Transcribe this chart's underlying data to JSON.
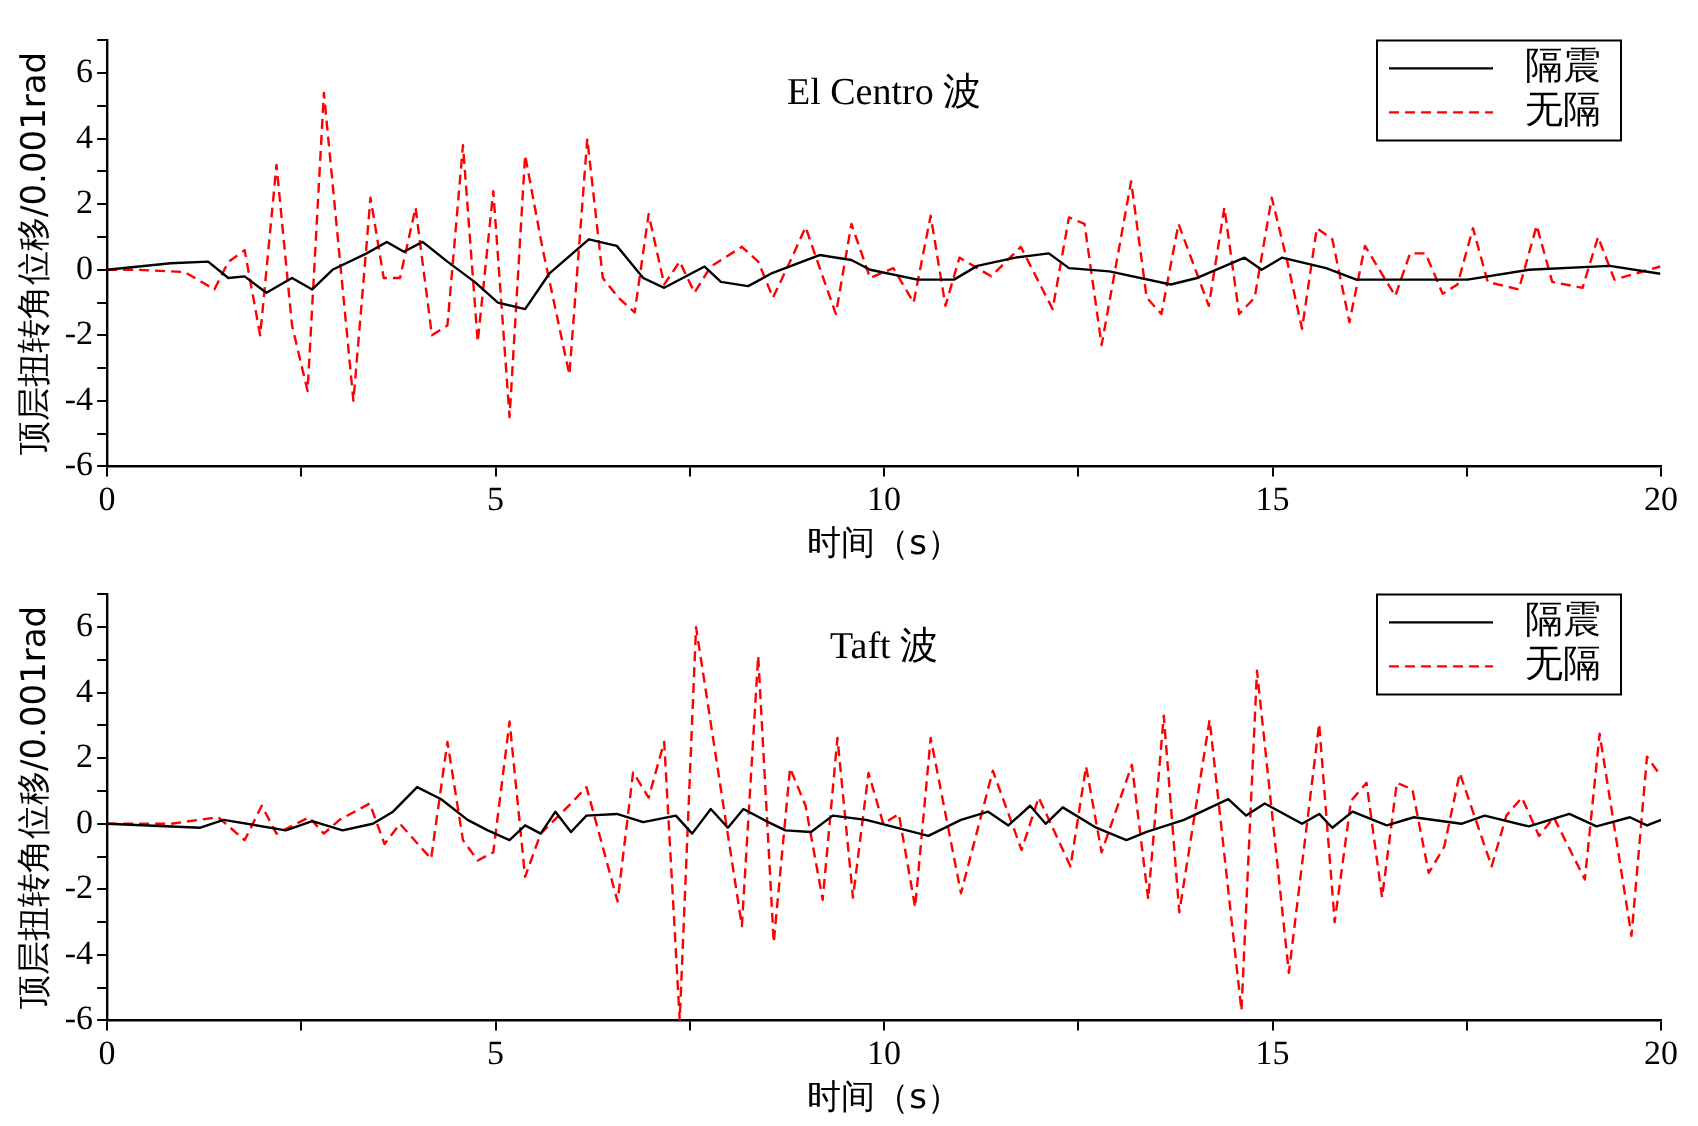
{
  "chart_data": [
    {
      "type": "line",
      "title": "El Centro 波",
      "xlabel": "时间（s）",
      "ylabel": "顶层扭转角位移/0.001rad",
      "legend": "top right",
      "marker": "none",
      "xlim": [
        0,
        20
      ],
      "xticks": [
        0,
        {
          "value": 2.5,
          "label": null
        },
        5,
        {
          "value": 7.5,
          "label": null
        },
        10,
        {
          "value": 12.5,
          "label": null
        },
        15,
        {
          "value": 17.5,
          "label": null
        },
        20
      ],
      "ylim": [
        -6,
        7
      ],
      "yticks": [
        -6,
        {
          "value": -5,
          "label": null
        },
        -4,
        {
          "value": -3,
          "label": null
        },
        -2,
        {
          "value": -1,
          "label": null
        },
        0,
        {
          "value": 1,
          "label": null
        },
        2,
        {
          "value": 3,
          "label": null
        },
        4,
        {
          "value": 5,
          "label": null
        },
        6,
        {
          "value": 7,
          "label": null
        }
      ],
      "series": [
        {
          "name": "隔震",
          "color": "#000000",
          "line_style": "solid",
          "x": [
            0,
            0.82,
            1.3,
            1.56,
            1.77,
            2.05,
            2.38,
            2.64,
            2.9,
            3.34,
            3.6,
            3.82,
            4.06,
            4.38,
            4.73,
            5.03,
            5.38,
            5.69,
            6.2,
            6.56,
            6.9,
            7.17,
            7.69,
            7.9,
            8.25,
            8.56,
            9.17,
            9.58,
            9.82,
            10.43,
            10.9,
            11.2,
            11.69,
            12.12,
            12.38,
            12.9,
            13.69,
            14.03,
            14.64,
            14.86,
            15.12,
            15.69,
            16.08,
            17.08,
            17.51,
            18.3,
            19.34,
            19.99
          ],
          "values": [
            0,
            0.2,
            0.25,
            -0.25,
            -0.2,
            -0.7,
            -0.25,
            -0.6,
            0,
            0.5,
            0.85,
            0.55,
            0.85,
            0.25,
            -0.37,
            -1,
            -1.2,
            -0.12,
            0.93,
            0.73,
            -0.25,
            -0.55,
            0.1,
            -0.37,
            -0.5,
            -0.1,
            0.45,
            0.3,
            0,
            -0.3,
            -0.3,
            0.12,
            0.37,
            0.5,
            0.05,
            -0.05,
            -0.45,
            -0.25,
            0.37,
            0,
            0.37,
            0.05,
            -0.3,
            -0.3,
            -0.3,
            0,
            0.12,
            -0.12
          ]
        },
        {
          "name": "无隔",
          "color": "#ff0000",
          "line_style": "dashed",
          "x": [
            0,
            0.38,
            1,
            1.38,
            1.56,
            1.77,
            1.97,
            2.18,
            2.38,
            2.58,
            2.79,
            3.17,
            3.39,
            3.56,
            3.77,
            3.97,
            4.18,
            4.38,
            4.58,
            4.77,
            4.97,
            5.18,
            5.38,
            5.6,
            5.95,
            6.18,
            6.38,
            6.58,
            6.79,
            6.97,
            7.17,
            7.37,
            7.56,
            7.77,
            8.17,
            8.38,
            8.57,
            8.79,
            8.99,
            9.18,
            9.38,
            9.58,
            9.82,
            10.12,
            10.38,
            10.6,
            10.79,
            10.97,
            11.38,
            11.76,
            12.17,
            12.38,
            12.58,
            12.8,
            13.18,
            13.38,
            13.57,
            13.79,
            14.18,
            14.38,
            14.57,
            14.77,
            14.99,
            15.19,
            15.38,
            15.57,
            15.77,
            15.99,
            16.19,
            16.58,
            16.77,
            16.97,
            17.19,
            17.38,
            17.58,
            17.77,
            18.17,
            18.4,
            18.6,
            18.99,
            19.19,
            19.4,
            19.99
          ],
          "values": [
            0,
            0,
            -0.07,
            -0.6,
            0.24,
            0.6,
            -2,
            3.2,
            -1.7,
            -3.7,
            5.4,
            -4,
            2.2,
            -0.25,
            -0.25,
            1.9,
            -2,
            -1.7,
            3.8,
            -2.2,
            2.4,
            -4.5,
            3.5,
            0.7,
            -3.2,
            4,
            -0.25,
            -0.85,
            -1.3,
            1.7,
            -0.45,
            0.25,
            -0.7,
            0.1,
            0.7,
            0.25,
            -0.85,
            0.25,
            1.3,
            0,
            -1.35,
            1.4,
            -0.25,
            0.05,
            -1,
            1.65,
            -1.1,
            0.37,
            -0.2,
            0.7,
            -1.2,
            1.6,
            1.4,
            -2.3,
            2.7,
            -0.85,
            -1.35,
            1.4,
            -1.1,
            1.9,
            -1.35,
            -0.85,
            2.2,
            0.25,
            -1.8,
            1.27,
            0.93,
            -1.6,
            0.73,
            -0.8,
            0.5,
            0.5,
            -0.73,
            -0.45,
            1.27,
            -0.37,
            -0.6,
            1.35,
            -0.37,
            -0.55,
            1,
            -0.3,
            0.1
          ]
        }
      ]
    },
    {
      "type": "line",
      "title": "Taft 波",
      "xlabel": "时间（s）",
      "ylabel": "顶层扭转角位移/0.001rad",
      "legend": "top right",
      "marker": "none",
      "xlim": [
        0,
        20
      ],
      "xticks": [
        0,
        {
          "value": 2.5,
          "label": null
        },
        5,
        {
          "value": 7.5,
          "label": null
        },
        10,
        {
          "value": 12.5,
          "label": null
        },
        15,
        {
          "value": 17.5,
          "label": null
        },
        20
      ],
      "ylim": [
        -6,
        7
      ],
      "yticks": [
        -6,
        {
          "value": -5,
          "label": null
        },
        -4,
        {
          "value": -3,
          "label": null
        },
        -2,
        {
          "value": -1,
          "label": null
        },
        0,
        {
          "value": 1,
          "label": null
        },
        2,
        {
          "value": 3,
          "label": null
        },
        4,
        {
          "value": 5,
          "label": null
        },
        6,
        {
          "value": 7,
          "label": null
        }
      ],
      "series": [
        {
          "name": "隔震",
          "color": "#000000",
          "line_style": "solid",
          "x": [
            0,
            1.2,
            1.5,
            2.3,
            2.64,
            3.03,
            3.42,
            3.68,
            3.99,
            4.3,
            4.64,
            4.9,
            5.18,
            5.38,
            5.58,
            5.77,
            5.97,
            6.17,
            6.56,
            6.9,
            7.32,
            7.53,
            7.77,
            7.99,
            8.19,
            8.51,
            8.73,
            9.06,
            9.34,
            9.77,
            10.57,
            10.99,
            11.34,
            11.6,
            11.88,
            12.08,
            12.3,
            12.73,
            13.12,
            13.38,
            13.86,
            14.43,
            14.66,
            14.9,
            15.38,
            15.6,
            15.77,
            16.03,
            16.47,
            16.82,
            17.43,
            17.73,
            18.3,
            18.82,
            19.17,
            19.6,
            19.82,
            20
          ],
          "values": [
            0,
            -0.12,
            0.12,
            -0.2,
            0.08,
            -0.2,
            0,
            0.37,
            1.12,
            0.75,
            0.12,
            -0.2,
            -0.5,
            -0.05,
            -0.3,
            0.37,
            -0.25,
            0.25,
            0.3,
            0.05,
            0.25,
            -0.3,
            0.45,
            -0.12,
            0.45,
            0.05,
            -0.2,
            -0.25,
            0.25,
            0.12,
            -0.37,
            0.12,
            0.37,
            -0.05,
            0.55,
            0,
            0.5,
            -0.12,
            -0.5,
            -0.25,
            0.12,
            0.75,
            0.25,
            0.62,
            0,
            0.3,
            -0.12,
            0.37,
            -0.05,
            0.2,
            0,
            0.25,
            -0.08,
            0.3,
            -0.08,
            0.2,
            -0.05,
            0.12
          ]
        },
        {
          "name": "无隔",
          "color": "#ff0000",
          "line_style": "dashed",
          "x": [
            0,
            0.82,
            1.43,
            1.77,
            1.99,
            2.18,
            2.6,
            2.79,
            2.99,
            3.38,
            3.57,
            3.77,
            4.17,
            4.38,
            4.58,
            4.77,
            4.97,
            5.18,
            5.38,
            5.58,
            5.97,
            6.17,
            6.57,
            6.77,
            6.97,
            7.17,
            7.37,
            7.58,
            8.17,
            8.38,
            8.58,
            8.79,
            8.99,
            9.21,
            9.4,
            9.6,
            9.8,
            9.99,
            10.19,
            10.4,
            10.6,
            10.99,
            11.4,
            11.77,
            11.99,
            12.4,
            12.6,
            12.8,
            13.19,
            13.4,
            13.6,
            13.8,
            14.19,
            14.6,
            14.8,
            15.21,
            15.6,
            15.8,
            16.01,
            16.21,
            16.41,
            16.6,
            16.8,
            17.01,
            17.21,
            17.41,
            17.82,
            18.01,
            18.21,
            18.43,
            18.62,
            19.02,
            19.21,
            19.62,
            19.82,
            20
          ],
          "values": [
            0,
            0,
            0.2,
            -0.5,
            0.55,
            -0.3,
            0.2,
            -0.3,
            0.12,
            0.62,
            -0.62,
            0,
            -1.07,
            2.5,
            -0.5,
            -1.12,
            -0.87,
            3.12,
            -1.62,
            -0.3,
            0.62,
            1.12,
            -2.37,
            1.57,
            0.8,
            2.5,
            -6,
            6,
            -3.12,
            5.12,
            -3.62,
            1.7,
            0.55,
            -2.32,
            2.62,
            -2.25,
            1.55,
            0,
            0.3,
            -2.55,
            2.62,
            -2.12,
            1.62,
            -0.8,
            0.8,
            -1.3,
            1.75,
            -0.87,
            1.8,
            -2.3,
            3.3,
            -2.7,
            3.17,
            -5.7,
            4.67,
            -4.55,
            3.05,
            -3,
            0.7,
            1.25,
            -2.25,
            1.25,
            1.05,
            -1.5,
            -0.7,
            1.55,
            -1.3,
            0.25,
            0.8,
            -0.37,
            0.2,
            -1.7,
            2.75,
            -3.42,
            2.05,
            1.45
          ]
        }
      ]
    }
  ]
}
